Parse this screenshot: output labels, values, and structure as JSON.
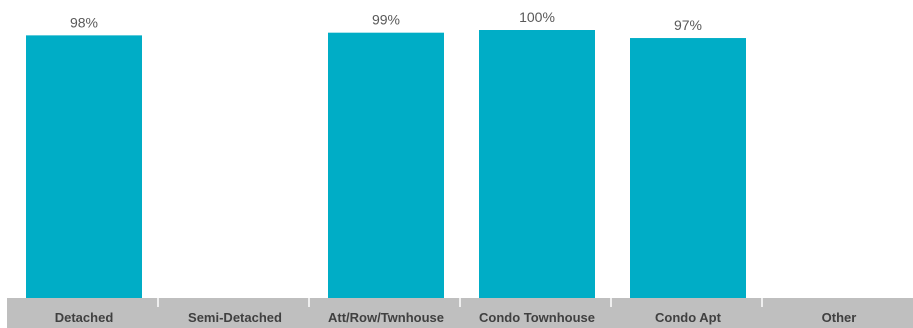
{
  "chart_data": {
    "type": "bar",
    "categories": [
      "Detached",
      "Semi-Detached",
      "Att/Row/Twnhouse",
      "Condo Townhouse",
      "Condo Apt",
      "Other"
    ],
    "values": [
      98,
      0,
      99,
      100,
      97,
      0
    ],
    "data_labels": [
      "98%",
      "",
      "99%",
      "100%",
      "97%",
      ""
    ],
    "ylim": [
      0,
      100
    ],
    "bar_color": "#00ADC6",
    "axis_band_color": "#BFBFBF",
    "grid": false,
    "legend": "none"
  }
}
